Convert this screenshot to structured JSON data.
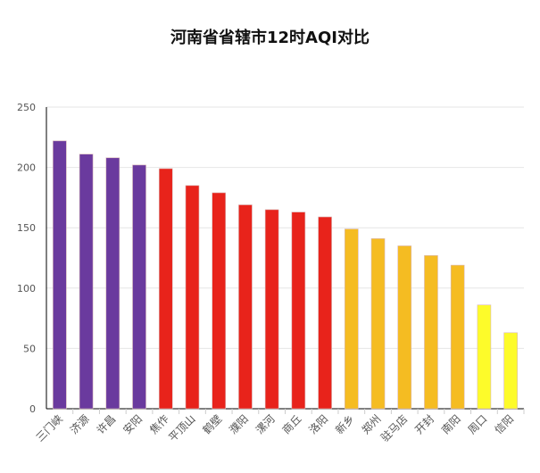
{
  "chart_data": {
    "type": "bar",
    "title": "河南省省辖市12时AQI对比",
    "xlabel": "",
    "ylabel": "",
    "ylim": [
      0,
      250
    ],
    "yticks": [
      0,
      50,
      100,
      150,
      200,
      250
    ],
    "grid": true,
    "categories": [
      "三门峡",
      "济源",
      "许昌",
      "安阳",
      "焦作",
      "平顶山",
      "鹤壁",
      "濮阳",
      "漯河",
      "商丘",
      "洛阳",
      "新乡",
      "郑州",
      "驻马店",
      "开封",
      "南阳",
      "周口",
      "信阳"
    ],
    "values": [
      222,
      211,
      208,
      202,
      199,
      185,
      179,
      169,
      165,
      163,
      159,
      149,
      141,
      135,
      127,
      119,
      86,
      63
    ],
    "colors": [
      "#6a3a9e",
      "#6a3a9e",
      "#6a3a9e",
      "#6a3a9e",
      "#e8231b",
      "#e8231b",
      "#e8231b",
      "#e8231b",
      "#e8231b",
      "#e8231b",
      "#e8231b",
      "#f5bc22",
      "#f5bc22",
      "#f5bc22",
      "#f5bc22",
      "#f5bc22",
      "#fdfb2a",
      "#fdfb2a"
    ]
  }
}
